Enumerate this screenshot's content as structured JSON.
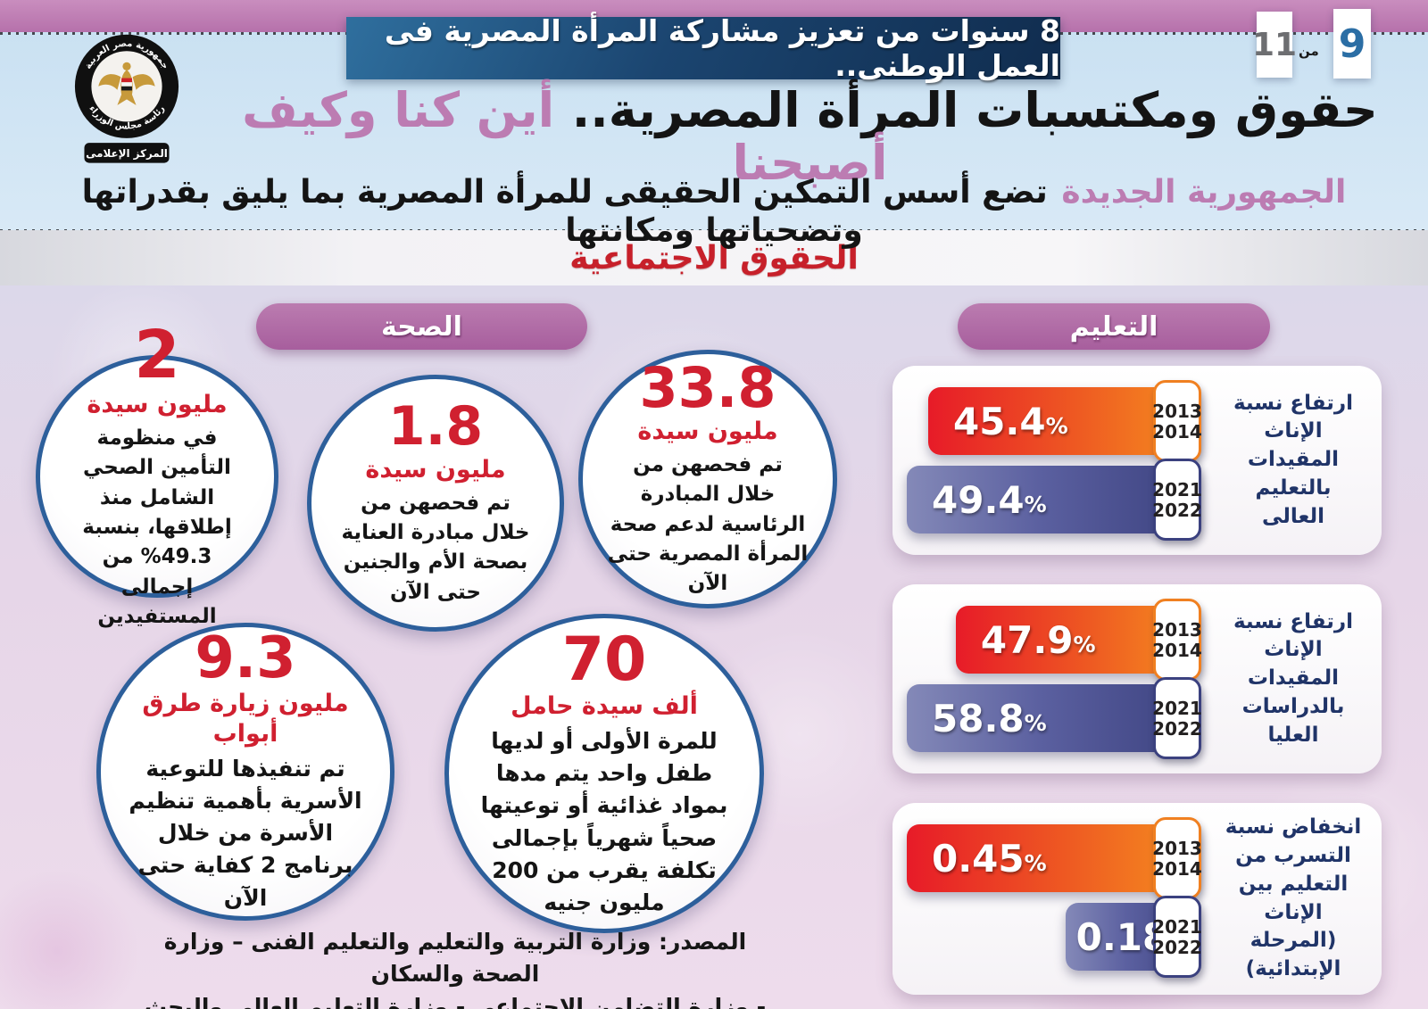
{
  "symbols": {
    "percent": "%"
  },
  "colors": {
    "accent_mauve": "#b26da8",
    "strip_mauve": "#bd7cb5",
    "header_blue": "#cde3f2",
    "banner_navy": "#123459",
    "stat_red": "#d02030",
    "circle_border_blue": "#2d5f9b",
    "bar_red_start": "#e71b28",
    "bar_orange_end": "#f6911f",
    "bar_blue_start": "#8489b8",
    "bar_navy_end": "#3b417f",
    "chart_label_navy": "#203468"
  },
  "header": {
    "banner": "8 سنوات من تعزيز مشاركة المرأة المصرية فى العمل الوطنى..",
    "page_current": "9",
    "page_sep": "من",
    "page_total": "11",
    "title_main": "حقوق ومكتسبات المرأة المصرية..",
    "title_accent": "أين كنا وكيف أصبحنا",
    "subtitle_accent": "الجمهورية الجديدة",
    "subtitle_text": "تضع أسس التمكين الحقيقى للمرأة المصرية بما يليق بقدراتها وتضحياتها ومكانتها",
    "logo": {
      "arc_top": "جمهورية مصر العربية",
      "arc_bottom": "رئاسة مجلس الوزراء",
      "ribbon": "المركز الإعلامى"
    }
  },
  "section": {
    "title": "الحقوق الاجتماعية"
  },
  "health": {
    "header": "الصحة",
    "stats": [
      {
        "value": "2",
        "unit": "مليون سيدة",
        "desc": "في منظومة التأمين الصحي الشامل منذ إطلاقها، بنسبة 49.3% من إجمالى المستفيدين"
      },
      {
        "value": "1.8",
        "unit": "مليون سيدة",
        "desc": "تم فحصهن من خلال مبادرة العناية بصحة الأم والجنين حتى الآن"
      },
      {
        "value": "33.8",
        "unit": "مليون سيدة",
        "desc": "تم فحصهن من خلال المبادرة الرئاسية لدعم صحة المرأة المصرية حتى الآن"
      },
      {
        "value": "9.3",
        "unit": "مليون زيارة طرق أبواب",
        "desc": "تم تنفيذها للتوعية الأسرية بأهمية تنظيم الأسرة من خلال برنامج 2 كفاية حتى الآن"
      },
      {
        "value": "70",
        "unit": "ألف سيدة حامل",
        "desc": "للمرة الأولى أو لديها طفل واحد يتم مدها بمواد غذائية أو توعيتها صحياً شهرياً بإجمالى تكلفة يقرب من 200 مليون جنيه"
      }
    ]
  },
  "education": {
    "header": "التعليم"
  },
  "chart_data": [
    {
      "type": "bar",
      "orientation": "horizontal",
      "title": "ارتفاع نسبة الإناث المقيدات بالتعليم العالى",
      "categories": [
        "2013/2014",
        "2021/2022"
      ],
      "values": [
        45.4,
        49.4
      ],
      "unit": "%",
      "xlim": [
        0,
        49.4
      ],
      "bars": [
        {
          "label": "45.4",
          "value": 45.4,
          "year_top": "2013",
          "year_bottom": "2014",
          "palette": "red-orange"
        },
        {
          "label": "49.4",
          "value": 49.4,
          "year_top": "2021",
          "year_bottom": "2022",
          "palette": "blue-navy"
        }
      ]
    },
    {
      "type": "bar",
      "orientation": "horizontal",
      "title": "ارتفاع نسبة الإناث المقيدات بالدراسات العليا",
      "categories": [
        "2013/2014",
        "2021/2022"
      ],
      "values": [
        47.9,
        58.8
      ],
      "unit": "%",
      "xlim": [
        0,
        58.8
      ],
      "bars": [
        {
          "label": "47.9",
          "value": 47.9,
          "year_top": "2013",
          "year_bottom": "2014",
          "palette": "red-orange"
        },
        {
          "label": "58.8",
          "value": 58.8,
          "year_top": "2021",
          "year_bottom": "2022",
          "palette": "blue-navy"
        }
      ]
    },
    {
      "type": "bar",
      "orientation": "horizontal",
      "title": "انخفاض نسبة التسرب من التعليم بين الإناث (المرحلة الإبتدائية)",
      "categories": [
        "2013/2014",
        "2021/2022"
      ],
      "values": [
        0.45,
        0.18
      ],
      "unit": "%",
      "xlim": [
        0,
        0.45
      ],
      "bars": [
        {
          "label": "0.45",
          "value": 0.45,
          "year_top": "2013",
          "year_bottom": "2014",
          "palette": "red-orange"
        },
        {
          "label": "0.18",
          "value": 0.18,
          "year_top": "2021",
          "year_bottom": "2022",
          "palette": "blue-navy"
        }
      ]
    }
  ],
  "source": {
    "line1": "المصدر: وزارة التربية والتعليم والتعليم الفنى – وزارة الصحة والسكان",
    "line2": "- وزارة التضامن الاجتماعى - وزارة التعليم العالى والبحث العلمى"
  }
}
